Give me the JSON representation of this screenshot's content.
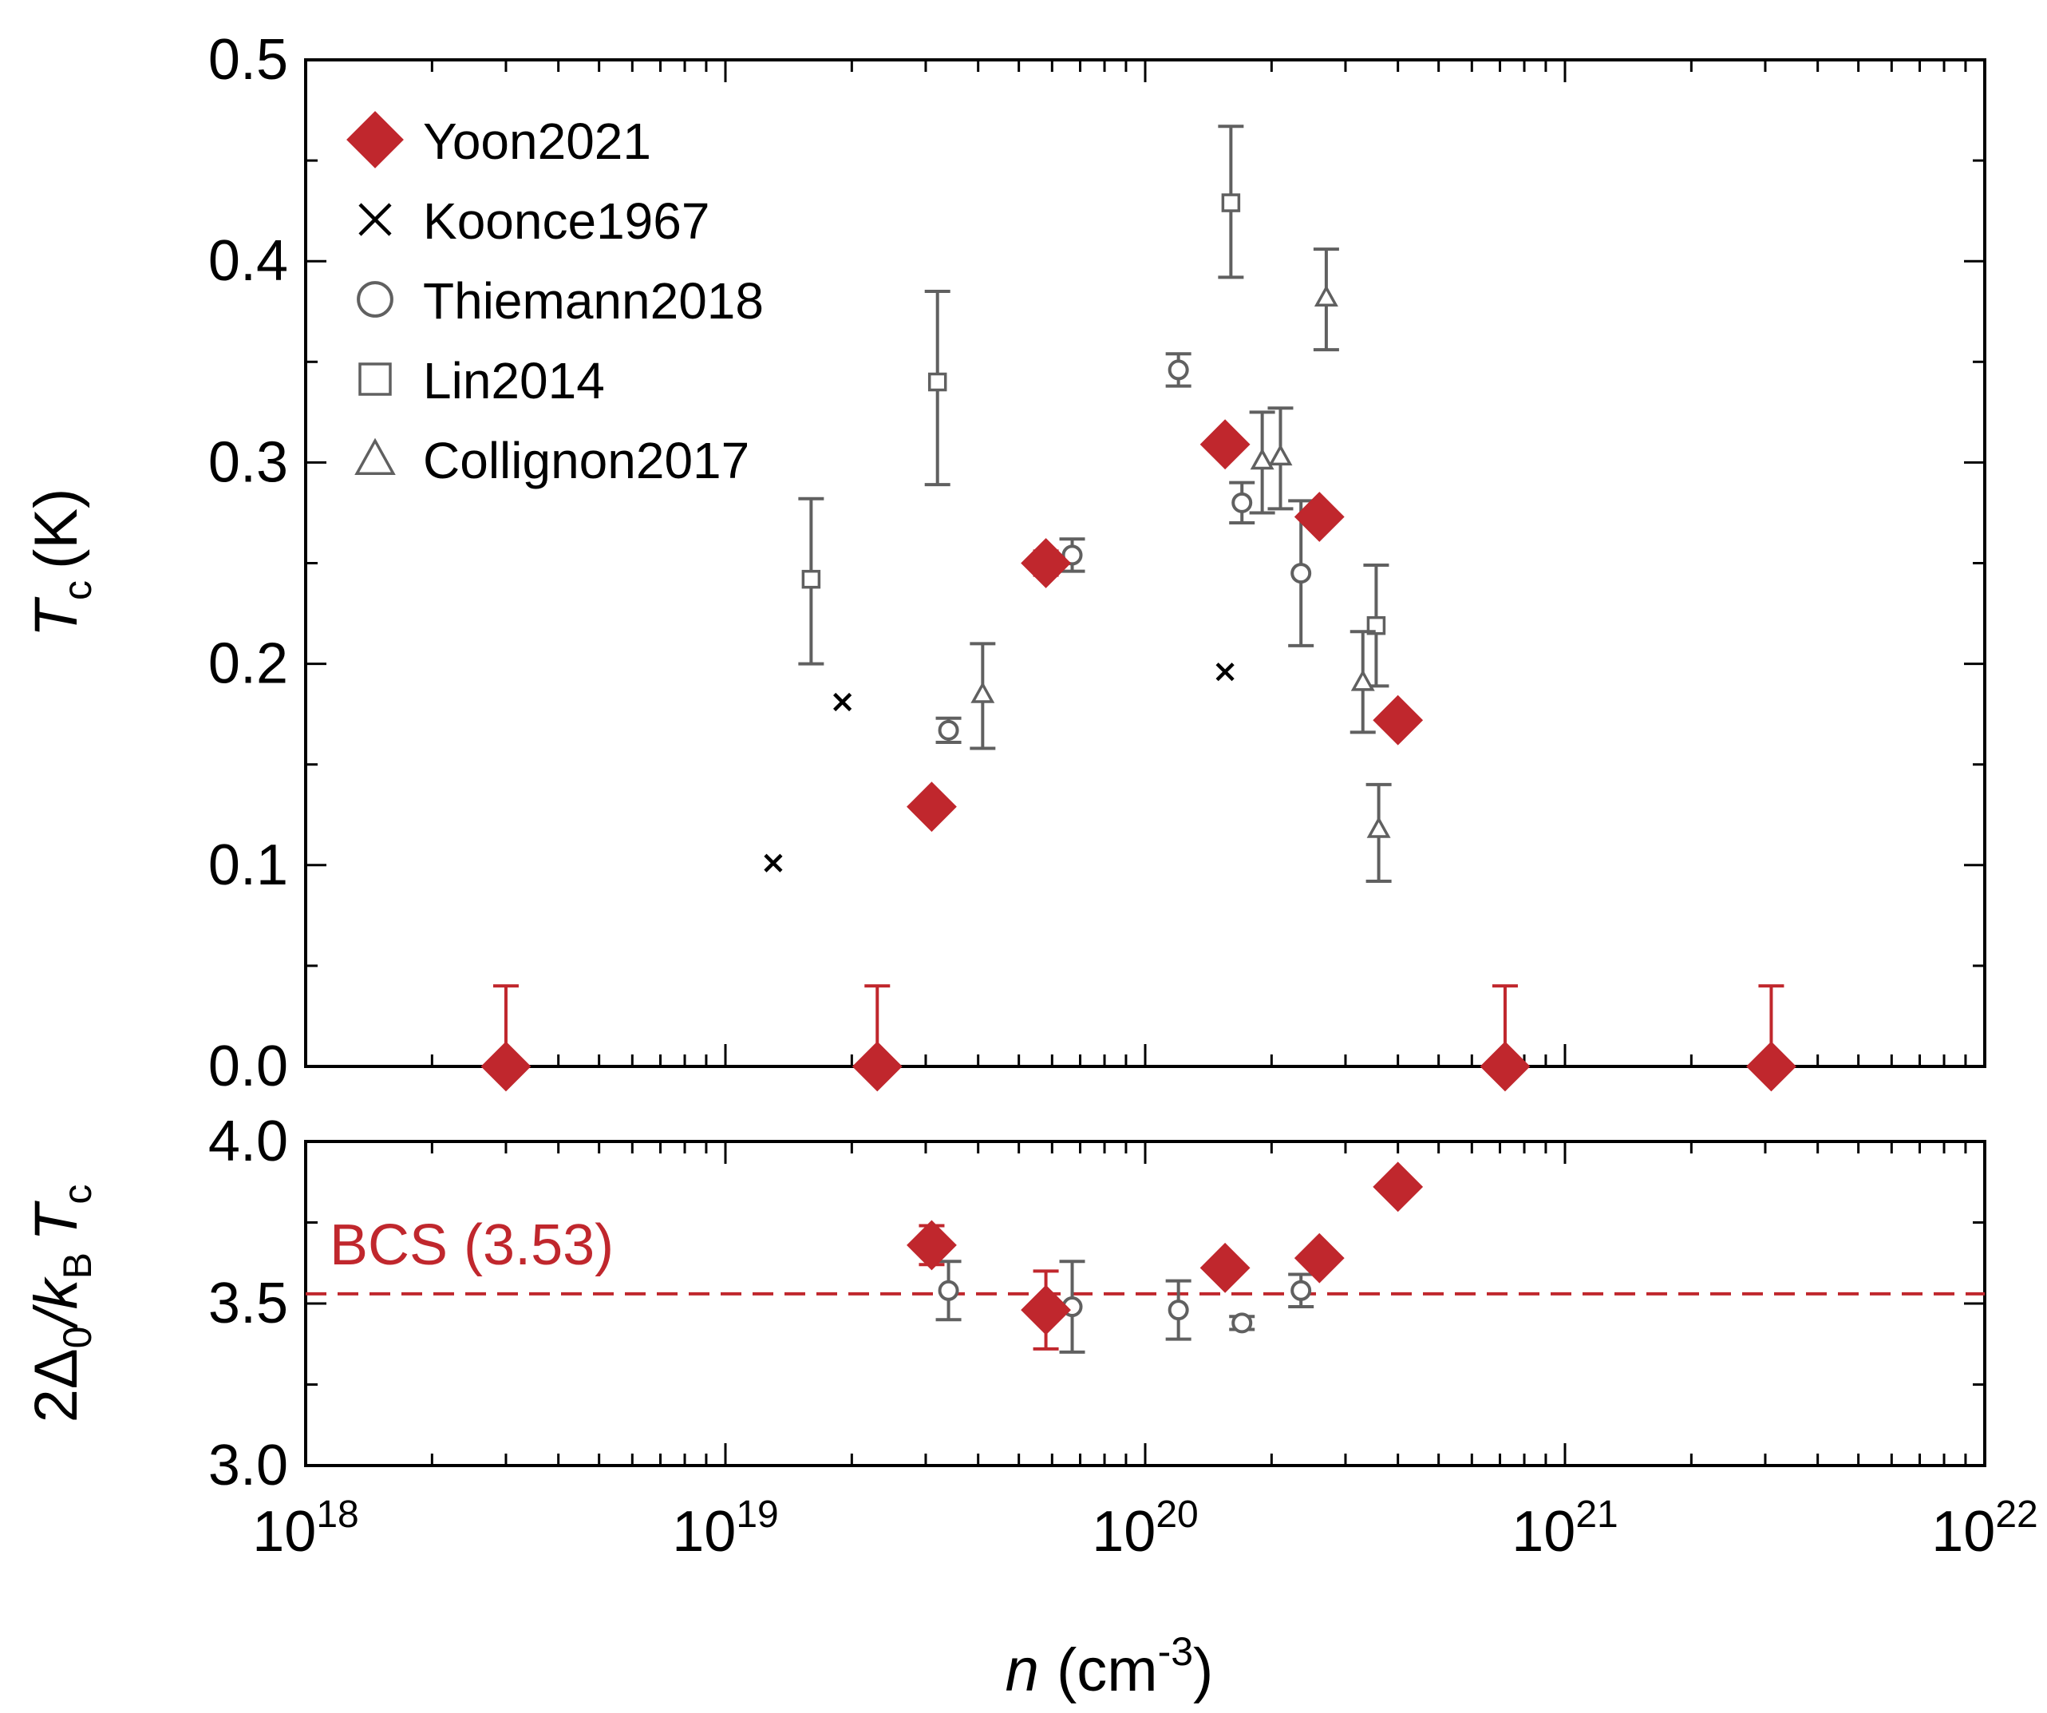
{
  "colors": {
    "yoon": "#c0272d",
    "gray": "#606060",
    "black": "#000000",
    "bcs": "#c0272d"
  },
  "chart_data": [
    {
      "panel": "top",
      "type": "scatter",
      "xscale": "log",
      "xlim": [
        1e+18,
        1e+22
      ],
      "ylim": [
        0.0,
        0.5
      ],
      "ylabel": {
        "main": "T",
        "sub": "c",
        "unit": "(K)"
      },
      "yticks": [
        "0.0",
        "0.1",
        "0.2",
        "0.3",
        "0.4",
        "0.5"
      ],
      "legend": {
        "placement": "top-left",
        "entries": [
          {
            "label": "Yoon2021",
            "marker": "diamond-filled"
          },
          {
            "label": "Koonce1967",
            "marker": "cross"
          },
          {
            "label": "Thiemann2018",
            "marker": "circle"
          },
          {
            "label": "Lin2014",
            "marker": "square"
          },
          {
            "label": "Collignon2017",
            "marker": "triangle"
          }
        ]
      },
      "series": [
        {
          "name": "Yoon2021",
          "marker": "diamond-filled",
          "color": "#c0272d",
          "points": [
            {
              "x": 3e+18,
              "y": 0.0,
              "err_up": 0.04,
              "err_down": 0
            },
            {
              "x": 2.3e+19,
              "y": 0.0,
              "err_up": 0.04,
              "err_down": 0
            },
            {
              "x": 3.1e+19,
              "y": 0.129
            },
            {
              "x": 5.8e+19,
              "y": 0.25,
              "err_up": 0.006,
              "err_down": 0.006
            },
            {
              "x": 1.55e+20,
              "y": 0.309
            },
            {
              "x": 2.6e+20,
              "y": 0.273
            },
            {
              "x": 4e+20,
              "y": 0.172
            },
            {
              "x": 7.2e+20,
              "y": 0.0,
              "err_up": 0.04,
              "err_down": 0
            },
            {
              "x": 3.1e+21,
              "y": 0.0,
              "err_up": 0.04,
              "err_down": 0
            }
          ]
        },
        {
          "name": "Koonce1967",
          "marker": "cross",
          "color": "#000000",
          "points": [
            {
              "x": 1.3e+19,
              "y": 0.101
            },
            {
              "x": 1.9e+19,
              "y": 0.181
            },
            {
              "x": 1.55e+20,
              "y": 0.196
            }
          ]
        },
        {
          "name": "Thiemann2018",
          "marker": "circle",
          "color": "#606060",
          "points": [
            {
              "x": 3.4e+19,
              "y": 0.167,
              "err_up": 0.006,
              "err_down": 0.006
            },
            {
              "x": 6.7e+19,
              "y": 0.254,
              "err_up": 0.008,
              "err_down": 0.008
            },
            {
              "x": 1.2e+20,
              "y": 0.346,
              "err_up": 0.008,
              "err_down": 0.008
            },
            {
              "x": 1.7e+20,
              "y": 0.28,
              "err_up": 0.01,
              "err_down": 0.01
            },
            {
              "x": 2.35e+20,
              "y": 0.245,
              "err_up": 0.036,
              "err_down": 0.036
            }
          ]
        },
        {
          "name": "Lin2014",
          "marker": "square",
          "color": "#606060",
          "points": [
            {
              "x": 1.6e+19,
              "y": 0.242,
              "err_up": 0.04,
              "err_down": 0.042
            },
            {
              "x": 3.2e+19,
              "y": 0.34,
              "err_up": 0.045,
              "err_down": 0.051
            },
            {
              "x": 1.6e+20,
              "y": 0.429,
              "err_up": 0.038,
              "err_down": 0.037
            },
            {
              "x": 3.55e+20,
              "y": 0.219,
              "err_up": 0.03,
              "err_down": 0.03
            }
          ]
        },
        {
          "name": "Collignon2017",
          "marker": "triangle",
          "color": "#606060",
          "points": [
            {
              "x": 4.1e+19,
              "y": 0.185,
              "err_up": 0.025,
              "err_down": 0.027
            },
            {
              "x": 1.9e+20,
              "y": 0.301,
              "err_up": 0.024,
              "err_down": 0.026
            },
            {
              "x": 2.1e+20,
              "y": 0.303,
              "err_up": 0.024,
              "err_down": 0.026
            },
            {
              "x": 2.7e+20,
              "y": 0.382,
              "err_up": 0.024,
              "err_down": 0.026
            },
            {
              "x": 3.3e+20,
              "y": 0.191,
              "err_up": 0.025,
              "err_down": 0.025
            },
            {
              "x": 3.6e+20,
              "y": 0.118,
              "err_up": 0.022,
              "err_down": 0.026
            }
          ]
        }
      ]
    },
    {
      "panel": "bottom",
      "type": "scatter",
      "xscale": "log",
      "xlim": [
        1e+18,
        1e+22
      ],
      "ylim": [
        3.0,
        4.0
      ],
      "ylabel": {
        "prefix": "2Δ",
        "sub1": "0",
        "mid": "/k",
        "sub2": "B",
        "main": "T",
        "sub3": "c"
      },
      "yticks": [
        "3.0",
        "3.5",
        "4.0"
      ],
      "xlabel": {
        "var": "n",
        "unit": "(cm",
        "exp": "-3",
        "close": ")"
      },
      "xticks": [
        {
          "base": "10",
          "exp": "18"
        },
        {
          "base": "10",
          "exp": "19"
        },
        {
          "base": "10",
          "exp": "20"
        },
        {
          "base": "10",
          "exp": "21"
        },
        {
          "base": "10",
          "exp": "22"
        }
      ],
      "reference_line": {
        "label": "BCS (3.53)",
        "y": 3.53,
        "style": "dashed"
      },
      "series": [
        {
          "name": "Yoon2021",
          "marker": "diamond-filled",
          "color": "#c0272d",
          "points": [
            {
              "x": 3.1e+19,
              "y": 3.68,
              "err_up": 0.06,
              "err_down": 0.06
            },
            {
              "x": 5.8e+19,
              "y": 3.48,
              "err_up": 0.12,
              "err_down": 0.12
            },
            {
              "x": 1.55e+20,
              "y": 3.61
            },
            {
              "x": 2.6e+20,
              "y": 3.64
            },
            {
              "x": 4e+20,
              "y": 3.86
            }
          ]
        },
        {
          "name": "Thiemann2018",
          "marker": "circle",
          "color": "#606060",
          "points": [
            {
              "x": 3.4e+19,
              "y": 3.54,
              "err_up": 0.09,
              "err_down": 0.09
            },
            {
              "x": 6.7e+19,
              "y": 3.49,
              "err_up": 0.14,
              "err_down": 0.14
            },
            {
              "x": 1.2e+20,
              "y": 3.48,
              "err_up": 0.09,
              "err_down": 0.09
            },
            {
              "x": 1.7e+20,
              "y": 3.44,
              "err_up": 0.02,
              "err_down": 0.02
            },
            {
              "x": 2.35e+20,
              "y": 3.54,
              "err_up": 0.05,
              "err_down": 0.05
            }
          ]
        }
      ]
    }
  ]
}
